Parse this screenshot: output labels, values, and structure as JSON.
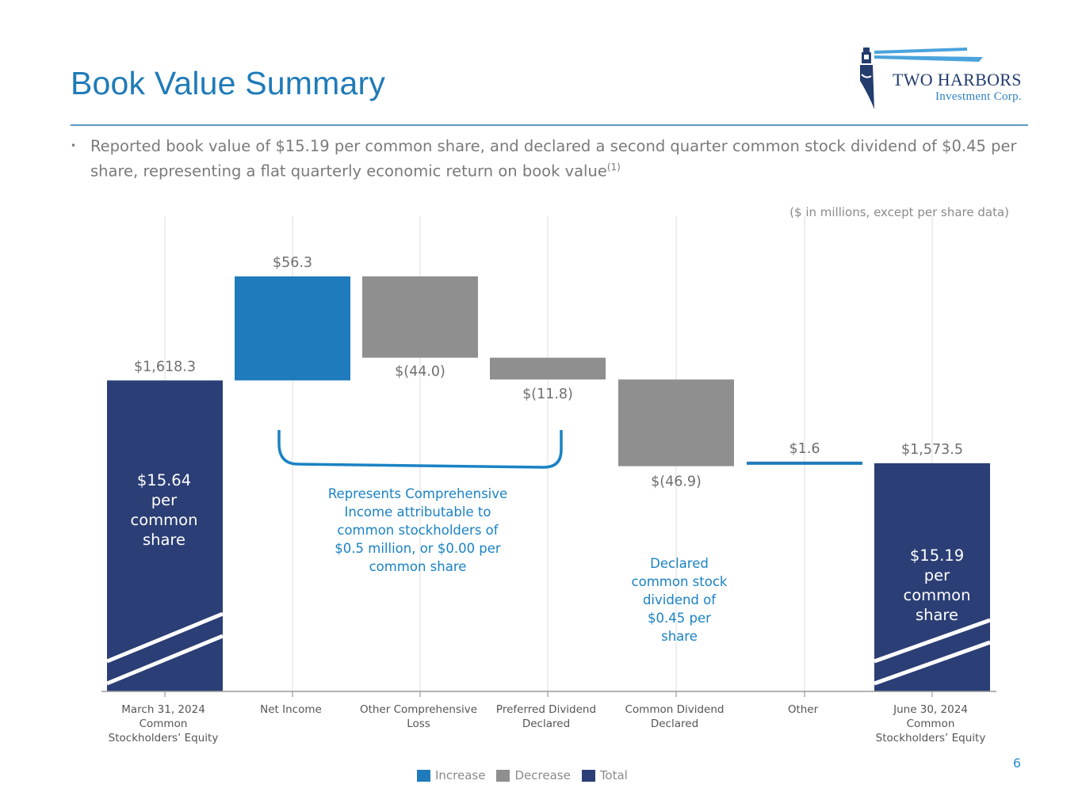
{
  "title": "Book Value Summary",
  "logo": {
    "line1": "TWO HARBORS",
    "line2": "Investment Corp."
  },
  "bullet": {
    "text": "Reported book value of $15.19 per common share, and declared a second quarter common stock dividend of $0.45 per share, representing a flat quarterly economic return on book value",
    "footnote": "(1)"
  },
  "units_note": "($ in millions, except per share data)",
  "page_number": "6",
  "colors": {
    "increase": "#1f7bbc",
    "decrease": "#8f8f8f",
    "total": "#2b3e75",
    "accent": "#1a82c4"
  },
  "chart_data": {
    "type": "waterfall",
    "ylim": [
      1450,
      1700
    ],
    "categories": [
      "March 31, 2024 Common Stockholders’ Equity",
      "Net Income",
      "Other Comprehensive Loss",
      "Preferred Dividend Declared",
      "Common Dividend Declared",
      "Other",
      "June 30, 2024 Common Stockholders’ Equity"
    ],
    "category_lines": [
      [
        "March 31, 2024",
        "Common",
        "Stockholders’ Equity"
      ],
      [
        "Net Income"
      ],
      [
        "Other Comprehensive",
        "Loss"
      ],
      [
        "Preferred Dividend",
        "Declared"
      ],
      [
        "Common Dividend",
        "Declared"
      ],
      [
        "Other"
      ],
      [
        "June 30, 2024",
        "Common",
        "Stockholders’ Equity"
      ]
    ],
    "steps": [
      {
        "kind": "total",
        "value": 1618.3,
        "label": "$1,618.3"
      },
      {
        "kind": "increase",
        "value": 56.3,
        "label": "$56.3"
      },
      {
        "kind": "decrease",
        "value": -44.0,
        "label": "$(44.0)"
      },
      {
        "kind": "decrease",
        "value": -11.8,
        "label": "$(11.8)"
      },
      {
        "kind": "decrease",
        "value": -46.9,
        "label": "$(46.9)"
      },
      {
        "kind": "increase",
        "value": 1.6,
        "label": "$1.6"
      },
      {
        "kind": "total",
        "value": 1573.5,
        "label": "$1,573.5"
      }
    ],
    "per_share_start": [
      "$15.64",
      "per",
      "common",
      "share"
    ],
    "per_share_end": [
      "$15.19",
      "per",
      "common",
      "share"
    ],
    "annotation_comprehensive": [
      "Represents Comprehensive",
      "Income attributable to",
      "common stockholders of",
      "$0.5 million, or $0.00 per",
      "common share"
    ],
    "annotation_dividend": [
      "Declared",
      "common stock",
      "dividend of",
      "$0.45 per",
      "share"
    ],
    "legend": [
      "Increase",
      "Decrease",
      "Total"
    ]
  }
}
